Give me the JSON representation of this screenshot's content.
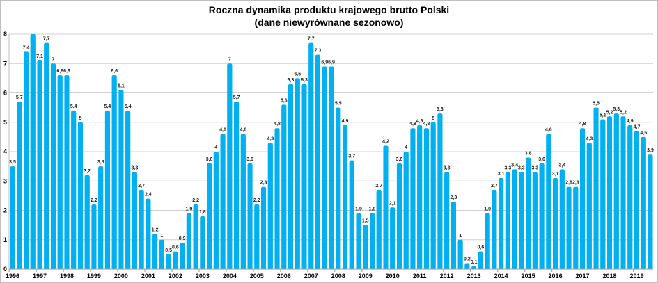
{
  "chart_data": {
    "type": "bar",
    "title": "Roczna dynamika produktu krajowego brutto Polski",
    "subtitle": "(dane niewyrównane sezonowo)",
    "xlabel": "",
    "ylabel": "",
    "ylim": [
      0,
      8
    ],
    "yticks": [
      0,
      1,
      2,
      3,
      4,
      5,
      6,
      7,
      8
    ],
    "grid": true,
    "legend": "none",
    "bar_color": "#00B0F0",
    "year_labels": [
      "1996",
      "1997",
      "1998",
      "1999",
      "2000",
      "2001",
      "2002",
      "2003",
      "2004",
      "2005",
      "2006",
      "2007",
      "2008",
      "2009",
      "2010",
      "2011",
      "2012",
      "2013",
      "2014",
      "2015",
      "2016",
      "2017",
      "2018",
      "2019"
    ],
    "values": [
      3.5,
      5.7,
      7.4,
      8,
      7.1,
      7.7,
      7,
      6.6,
      6.6,
      5.4,
      5,
      3.2,
      2.2,
      3.5,
      5.4,
      6.6,
      6.1,
      5.4,
      3.3,
      2.7,
      2.4,
      1.2,
      1,
      0.5,
      0.6,
      0.9,
      1.9,
      2.2,
      1.8,
      3.6,
      4,
      4.6,
      7,
      5.7,
      4.6,
      3.6,
      2.2,
      2.8,
      4.3,
      4.8,
      5.6,
      6.3,
      6.5,
      6.3,
      7.7,
      7.3,
      6.9,
      6.9,
      5.5,
      4.9,
      3.7,
      1.9,
      1.5,
      1.9,
      2.7,
      4.2,
      2.1,
      3.6,
      4,
      4.8,
      4.9,
      4.8,
      5,
      5.3,
      3.3,
      2.3,
      1,
      0.2,
      0.1,
      0.6,
      1.9,
      2.7,
      3.1,
      3.3,
      3.4,
      3.3,
      3.8,
      3.3,
      3.6,
      4.6,
      3.1,
      3.4,
      2.8,
      2.8,
      4.8,
      4.3,
      5.5,
      5.1,
      5.2,
      5.3,
      5.2,
      4.9,
      4.7,
      4.5,
      3.9
    ],
    "data_labels": [
      "3,5",
      "5,7",
      "7,4",
      "",
      "7,1",
      "7,7",
      "7",
      "6,6",
      "6,6",
      "5,4",
      "5",
      "3,2",
      "2,2",
      "3,5",
      "5,4",
      "6,6",
      "6,1",
      "5,4",
      "3,3",
      "2,7",
      "2,4",
      "1,2",
      "1",
      "0,5",
      "0,6",
      "0,9",
      "1,9",
      "2,2",
      "1,8",
      "3,6",
      "4",
      "4,6",
      "7",
      "5,7",
      "4,6",
      "3,6",
      "2,2",
      "2,8",
      "4,3",
      "4,8",
      "5,6",
      "6,3",
      "6,5",
      "6,3",
      "7,7",
      "7,3",
      "6,9",
      "6,9",
      "5,5",
      "4,9",
      "3,7",
      "1,9",
      "1,5",
      "1,9",
      "2,7",
      "4,2",
      "2,1",
      "3,6",
      "4",
      "4,8",
      "4,9",
      "4,8",
      "5",
      "5,3",
      "3,3",
      "2,3",
      "1",
      "0,2",
      "0,1",
      "0,6",
      "1,9",
      "2,7",
      "3,1",
      "3,3",
      "3,4",
      "3,3",
      "3,8",
      "3,3",
      "3,6",
      "4,6",
      "3,1",
      "3,4",
      "2,8",
      "2,8",
      "4,8",
      "4,3",
      "5,5",
      "5,1",
      "5,2",
      "5,3",
      "5,2",
      "4,9",
      "4,7",
      "4,5",
      "3,9"
    ]
  }
}
